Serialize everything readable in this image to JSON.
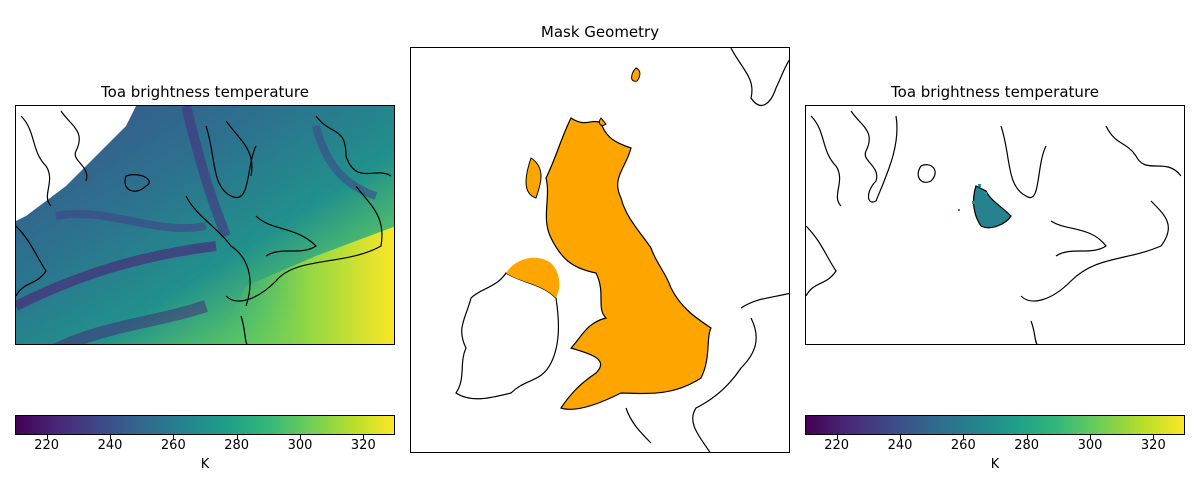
{
  "panels": {
    "left": {
      "title": "Toa brightness temperature"
    },
    "middle": {
      "title": "Mask Geometry",
      "fill_color": "#ffa500"
    },
    "right": {
      "title": "Toa brightness temperature"
    }
  },
  "colorbar": {
    "label": "K",
    "min": 210,
    "max": 330,
    "ticks": [
      "220",
      "240",
      "260",
      "280",
      "300",
      "320"
    ],
    "tick_values": [
      220,
      240,
      260,
      280,
      300,
      320
    ],
    "colormap": "viridis",
    "stops": [
      "#440154",
      "#482878",
      "#3e4989",
      "#31688e",
      "#26828e",
      "#1f9e89",
      "#35b779",
      "#6ece58",
      "#b5de2b",
      "#fde725"
    ]
  }
}
